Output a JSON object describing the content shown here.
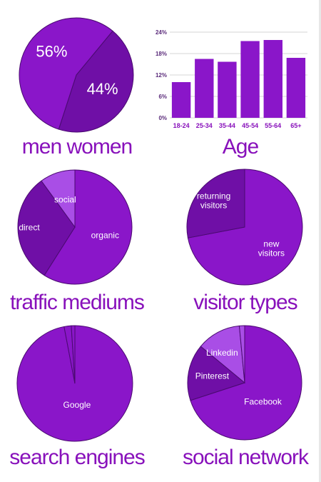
{
  "colors": {
    "primary": "#8a16c9",
    "dark": "#6f0fa6",
    "light": "#a94ee6",
    "grid": "#d4d4d4"
  },
  "chart_data": [
    {
      "id": "gender",
      "type": "pie",
      "title": "men women",
      "slices": [
        {
          "label": "men",
          "value": 44,
          "display": "44%",
          "color": "dark"
        },
        {
          "label": "women",
          "value": 56,
          "display": "56%",
          "color": "primary"
        }
      ]
    },
    {
      "id": "age",
      "type": "bar",
      "title": "Age",
      "categories": [
        "18-24",
        "25-34",
        "35-44",
        "45-54",
        "55-64",
        "65+"
      ],
      "values": [
        10,
        16.5,
        15.7,
        21.5,
        21.8,
        16.8
      ],
      "ylim": [
        0,
        24
      ],
      "yticks": [
        "0%",
        "6%",
        "12%",
        "18%",
        "24%"
      ],
      "grid": true
    },
    {
      "id": "traffic",
      "type": "pie",
      "title": "traffic mediums",
      "slices": [
        {
          "label": "organic",
          "value": 59,
          "color": "primary"
        },
        {
          "label": "direct",
          "value": 31,
          "color": "dark"
        },
        {
          "label": "social",
          "value": 10,
          "color": "light"
        }
      ]
    },
    {
      "id": "visitors",
      "type": "pie",
      "title": "visitor types",
      "slices": [
        {
          "label": "new visitors",
          "lines": [
            "new",
            "visitors"
          ],
          "value": 72,
          "color": "primary"
        },
        {
          "label": "returning visitors",
          "lines": [
            "returning",
            "visitors"
          ],
          "value": 28,
          "color": "dark"
        }
      ]
    },
    {
      "id": "search",
      "type": "pie",
      "title": "search engines",
      "slices": [
        {
          "label": "Google",
          "value": 97,
          "color": "primary"
        },
        {
          "label": "",
          "value": 2,
          "color": "primary"
        },
        {
          "label": "",
          "value": 1,
          "color": "primary"
        }
      ]
    },
    {
      "id": "social",
      "type": "pie",
      "title": "social network",
      "slices": [
        {
          "label": "Facebook",
          "value": 70,
          "color": "primary"
        },
        {
          "label": "Pinterest",
          "value": 16,
          "color": "dark"
        },
        {
          "label": "Linkedin",
          "value": 12.5,
          "color": "light"
        },
        {
          "label": "",
          "value": 1.5,
          "color": "light"
        }
      ]
    }
  ]
}
